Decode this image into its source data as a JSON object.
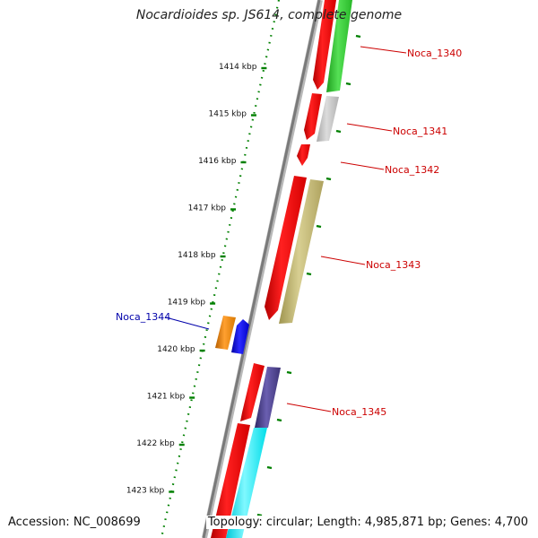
{
  "title": "Nocardioides sp. JS614, complete genome",
  "accession_text": "Accession: NC_008699",
  "topology_text": "Topology: circular; Length: 4,985,871 bp; Genes: 4,700",
  "scale_ticks": [
    "1414 kbp",
    "1415 kbp",
    "1416 kbp",
    "1417 kbp",
    "1418 kbp",
    "1419 kbp",
    "1420 kbp",
    "1421 kbp",
    "1422 kbp",
    "1423 kbp"
  ],
  "genes": [
    {
      "label": "Noca_1340",
      "color": "#33cc33",
      "strand": "forward",
      "label_color": "#cc0000"
    },
    {
      "label": "Noca_1341",
      "color": "#c0c0c0",
      "strand": "forward",
      "label_color": "#cc0000"
    },
    {
      "label": "Noca_1342",
      "color": "#ff0000",
      "strand": "forward",
      "label_color": "#cc0000"
    },
    {
      "label": "Noca_1343",
      "color": "#c2b97a",
      "strand": "forward",
      "label_color": "#cc0000"
    },
    {
      "label": "Noca_1344",
      "color": "#0000ee",
      "strand": "reverse",
      "label_color": "#0000aa"
    },
    {
      "label": "Noca_1345",
      "color": "#4b3f8c",
      "strand": "forward",
      "label_color": "#cc0000"
    }
  ],
  "colors": {
    "backbone": "#808080",
    "cds": "#ff0000",
    "tick": "#008000",
    "orange_gene": "#ff8c00",
    "cyan_gene": "#00ffff"
  }
}
